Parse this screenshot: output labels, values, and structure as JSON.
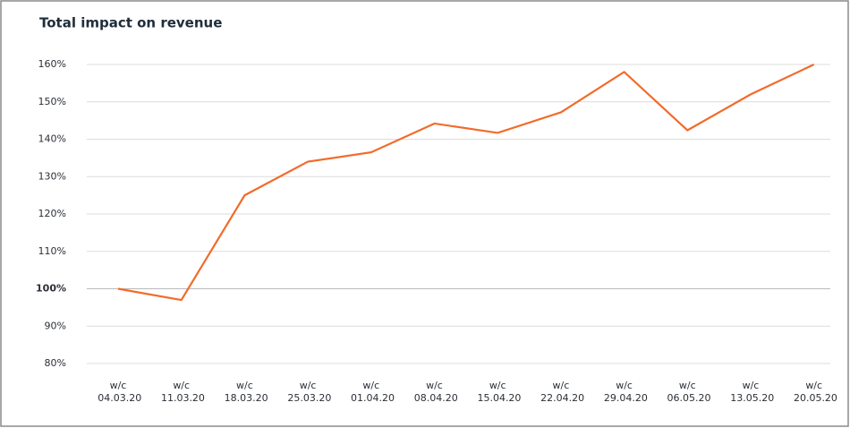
{
  "chart_data": {
    "type": "line",
    "title": "Total impact on revenue",
    "categories": [
      "w/c 04.03.20",
      "w/c 11.03.20",
      "w/c 18.03.20",
      "w/c 25.03.20",
      "w/c 01.04.20",
      "w/c 08.04.20",
      "w/c 15.04.20",
      "w/c 22.04.20",
      "w/c 29.04.20",
      "w/c 06.05.20",
      "w/c 13.05.20",
      "w/c 20.05.20"
    ],
    "values": [
      100,
      97,
      125,
      134,
      136.5,
      144.2,
      141.7,
      147.2,
      158,
      142.4,
      152,
      160
    ],
    "color": "#f26b2a",
    "ylim": [
      80,
      160
    ],
    "yticks": [
      {
        "value": 80,
        "label": "80%"
      },
      {
        "value": 90,
        "label": "90%"
      },
      {
        "value": 100,
        "label": "100%"
      },
      {
        "value": 110,
        "label": "110%"
      },
      {
        "value": 120,
        "label": "120%"
      },
      {
        "value": 130,
        "label": "130%"
      },
      {
        "value": 140,
        "label": "140%"
      },
      {
        "value": 150,
        "label": "150%"
      },
      {
        "value": 160,
        "label": "160%"
      }
    ],
    "reference_line": 100,
    "grid": true
  }
}
